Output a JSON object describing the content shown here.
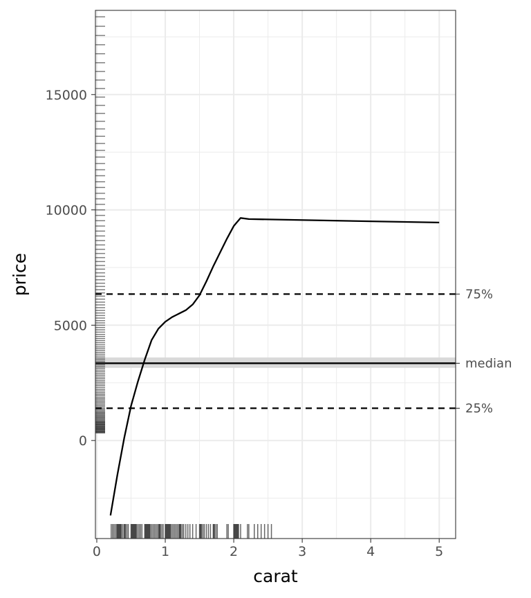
{
  "chart_data": {
    "type": "line",
    "xlabel": "carat",
    "ylabel": "price",
    "xlim": [
      -0.02,
      5.24
    ],
    "ylim": [
      -4250,
      18650
    ],
    "x_ticks": [
      0,
      1,
      2,
      3,
      4,
      5
    ],
    "x_tick_labels": [
      "0",
      "1",
      "2",
      "3",
      "4",
      "5"
    ],
    "y_ticks": [
      0,
      5000,
      10000,
      15000
    ],
    "y_tick_labels": [
      "0",
      "5000",
      "10000",
      "15000"
    ],
    "grid": true,
    "smooth_curve": {
      "x": [
        0.2,
        0.3,
        0.4,
        0.5,
        0.6,
        0.7,
        0.8,
        0.9,
        1.0,
        1.1,
        1.2,
        1.3,
        1.4,
        1.5,
        1.6,
        1.7,
        1.8,
        1.9,
        2.0,
        2.1,
        2.22,
        5.0
      ],
      "y": [
        -3250,
        -1500,
        100,
        1500,
        2550,
        3500,
        4350,
        4850,
        5150,
        5350,
        5500,
        5650,
        5900,
        6300,
        6900,
        7550,
        8150,
        8750,
        9300,
        9650,
        9600,
        9450
      ]
    },
    "reference_lines": [
      {
        "label": "75%",
        "value": 6350,
        "style": "dashed"
      },
      {
        "label": "median",
        "value": 3350,
        "style": "solid",
        "band": [
          3150,
          3600
        ]
      },
      {
        "label": "25%",
        "value": 1400,
        "style": "dashed"
      }
    ],
    "rug_y": [
      330,
      350,
      380,
      400,
      420,
      450,
      480,
      500,
      520,
      550,
      570,
      600,
      620,
      650,
      680,
      700,
      720,
      750,
      780,
      800,
      830,
      860,
      900,
      940,
      980,
      1010,
      1050,
      1090,
      1130,
      1170,
      1210,
      1250,
      1300,
      1350,
      1400,
      1460,
      1520,
      1580,
      1640,
      1700,
      1760,
      1820,
      1880,
      1950,
      2010,
      2080,
      2150,
      2220,
      2300,
      2380,
      2450,
      2530,
      2600,
      2680,
      2750,
      2830,
      2900,
      2980,
      3050,
      3130,
      3200,
      3280,
      3350,
      3420,
      3500,
      3580,
      3660,
      3740,
      3820,
      3900,
      3980,
      4060,
      4150,
      4240,
      4330,
      4420,
      4510,
      4600,
      4700,
      4800,
      4900,
      5000,
      5100,
      5200,
      5310,
      5420,
      5530,
      5640,
      5760,
      5880,
      6000,
      6130,
      6260,
      6400,
      6540,
      6680,
      6820,
      6970,
      7120,
      7270,
      7430,
      7590,
      7760,
      7930,
      8110,
      8290,
      8480,
      8670,
      8870,
      9080,
      9300,
      9530,
      9760,
      10000,
      10240,
      10480,
      10720,
      10970,
      11220,
      11480,
      11740,
      12010,
      12290,
      12580,
      12880,
      13190,
      13510,
      13840,
      14180,
      14530,
      14890,
      15260,
      15630,
      16000,
      16380,
      16770,
      17160,
      17560,
      17960,
      18370
    ],
    "rug_x": [
      0.21,
      0.23,
      0.25,
      0.27,
      0.29,
      0.3,
      0.31,
      0.32,
      0.33,
      0.34,
      0.35,
      0.36,
      0.38,
      0.4,
      0.41,
      0.42,
      0.44,
      0.46,
      0.5,
      0.51,
      0.52,
      0.53,
      0.54,
      0.55,
      0.56,
      0.57,
      0.58,
      0.6,
      0.62,
      0.64,
      0.66,
      0.7,
      0.71,
      0.72,
      0.73,
      0.74,
      0.75,
      0.76,
      0.77,
      0.78,
      0.8,
      0.82,
      0.84,
      0.86,
      0.88,
      0.9,
      0.91,
      0.92,
      0.93,
      0.95,
      0.97,
      1.0,
      1.01,
      1.02,
      1.03,
      1.04,
      1.05,
      1.06,
      1.07,
      1.08,
      1.1,
      1.12,
      1.14,
      1.16,
      1.18,
      1.2,
      1.21,
      1.22,
      1.23,
      1.25,
      1.27,
      1.3,
      1.33,
      1.36,
      1.4,
      1.45,
      1.5,
      1.51,
      1.52,
      1.53,
      1.55,
      1.57,
      1.6,
      1.63,
      1.66,
      1.7,
      1.71,
      1.72,
      1.74,
      1.76,
      1.9,
      1.92,
      2.0,
      2.01,
      2.02,
      2.03,
      2.04,
      2.05,
      2.06,
      2.07,
      2.1,
      2.2,
      2.22,
      2.3,
      2.35,
      2.4,
      2.45,
      2.5,
      2.55
    ]
  }
}
